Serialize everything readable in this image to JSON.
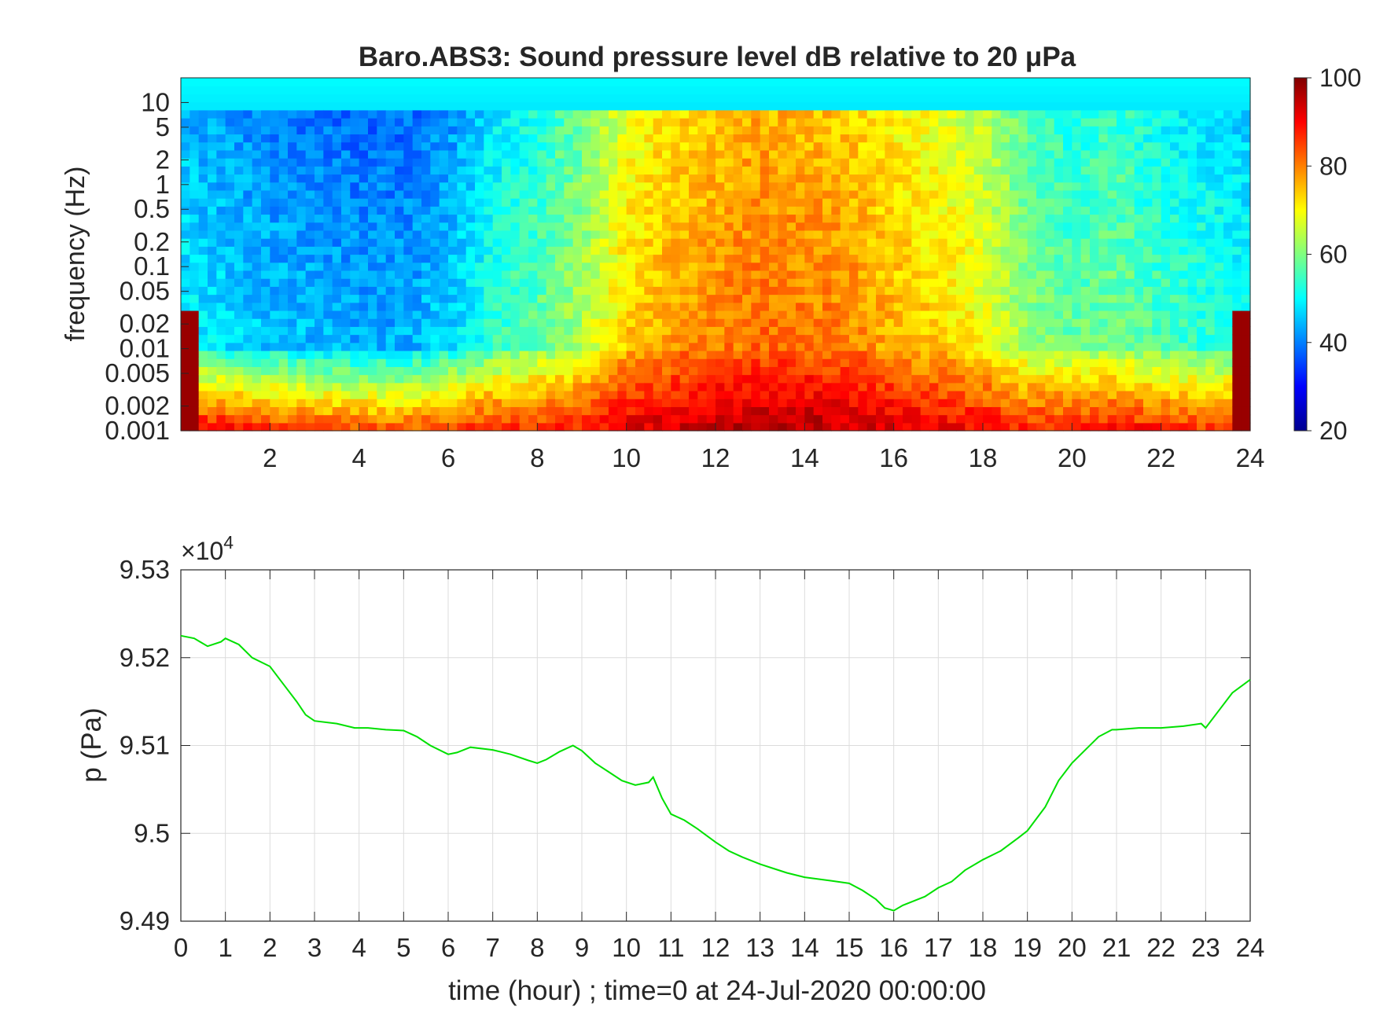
{
  "chart_data": [
    {
      "type": "heatmap",
      "title": "Baro.ABS3: Sound pressure level dB relative to 20 μPa",
      "xlabel": "",
      "ylabel": "frequency (Hz)",
      "xlim": [
        0,
        24
      ],
      "x_ticks": [
        2,
        4,
        6,
        8,
        10,
        12,
        14,
        16,
        18,
        20,
        22,
        24
      ],
      "y_scale": "log",
      "ylim": [
        0.001,
        20
      ],
      "y_ticks": [
        0.001,
        0.002,
        0.005,
        0.01,
        0.02,
        0.05,
        0.1,
        0.2,
        0.5,
        1,
        2,
        5,
        10
      ],
      "y_tick_labels": [
        "0.001",
        "0.002",
        "0.005",
        "0.01",
        "0.02",
        "0.05",
        "0.1",
        "0.2",
        "0.5",
        "1",
        "2",
        "5",
        "10"
      ],
      "colormap": "jet",
      "colorbar": {
        "range": [
          20,
          100
        ],
        "ticks": [
          20,
          40,
          60,
          80,
          100
        ],
        "placement": "right"
      },
      "level_by_hour": {
        "hours": [
          0,
          1,
          2,
          3,
          4,
          5,
          6,
          7,
          8,
          9,
          10,
          11,
          12,
          13,
          14,
          15,
          16,
          17,
          18,
          19,
          20,
          21,
          22,
          23,
          24
        ],
        "broadband_dB": [
          50,
          48,
          46,
          45,
          44,
          44,
          47,
          54,
          58,
          64,
          74,
          78,
          80,
          82,
          81,
          80,
          76,
          74,
          70,
          62,
          58,
          60,
          56,
          54,
          52
        ],
        "low_freq_dB": [
          92,
          90,
          88,
          86,
          84,
          84,
          86,
          88,
          88,
          88,
          92,
          94,
          95,
          97,
          96,
          95,
          93,
          92,
          90,
          88,
          89,
          90,
          88,
          86,
          92
        ]
      }
    },
    {
      "type": "line",
      "xlabel": "time (hour) ; time=0 at 24-Jul-2020 00:00:00",
      "ylabel": "p (Pa)",
      "y_exponent_label": "×10",
      "y_exponent_power": "4",
      "xlim": [
        0,
        24
      ],
      "ylim": [
        94900,
        95300
      ],
      "x_ticks": [
        0,
        1,
        2,
        3,
        4,
        5,
        6,
        7,
        8,
        9,
        10,
        11,
        12,
        13,
        14,
        15,
        16,
        17,
        18,
        19,
        20,
        21,
        22,
        23,
        24
      ],
      "y_ticks": [
        94900,
        95000,
        95100,
        95200,
        95300
      ],
      "y_tick_labels": [
        "9.49",
        "9.5",
        "9.51",
        "9.52",
        "9.53"
      ],
      "grid": true,
      "line_color": "#00e000",
      "x": [
        0,
        0.3,
        0.6,
        0.9,
        1.0,
        1.3,
        1.6,
        2.0,
        2.3,
        2.6,
        2.8,
        3.0,
        3.5,
        3.9,
        4.2,
        4.6,
        5.0,
        5.3,
        5.6,
        6.0,
        6.2,
        6.5,
        7.0,
        7.4,
        7.8,
        8.0,
        8.2,
        8.5,
        8.8,
        9.0,
        9.3,
        9.6,
        9.9,
        10.2,
        10.5,
        10.6,
        10.8,
        11.0,
        11.3,
        11.6,
        12.0,
        12.3,
        12.6,
        13.0,
        13.3,
        13.6,
        14.0,
        14.3,
        14.6,
        15.0,
        15.3,
        15.6,
        15.8,
        16.0,
        16.2,
        16.4,
        16.7,
        17.0,
        17.3,
        17.6,
        18.0,
        18.4,
        18.8,
        19.0,
        19.4,
        19.7,
        20.0,
        20.3,
        20.6,
        20.9,
        21.0,
        21.5,
        22.0,
        22.5,
        22.9,
        23.0,
        23.3,
        23.6,
        24.0
      ],
      "y": [
        95225,
        95222,
        95213,
        95218,
        95222,
        95215,
        95200,
        95190,
        95170,
        95150,
        95135,
        95128,
        95125,
        95120,
        95120,
        95118,
        95117,
        95110,
        95100,
        95090,
        95092,
        95098,
        95095,
        95090,
        95083,
        95080,
        95084,
        95093,
        95100,
        95094,
        95080,
        95070,
        95060,
        95055,
        95058,
        95064,
        95040,
        95022,
        95015,
        95005,
        94990,
        94980,
        94973,
        94965,
        94960,
        94955,
        94950,
        94948,
        94946,
        94943,
        94935,
        94925,
        94915,
        94912,
        94918,
        94922,
        94928,
        94938,
        94945,
        94958,
        94970,
        94980,
        94995,
        95003,
        95030,
        95060,
        95080,
        95095,
        95110,
        95118,
        95118,
        95120,
        95120,
        95122,
        95125,
        95120,
        95140,
        95160,
        95175
      ]
    }
  ]
}
